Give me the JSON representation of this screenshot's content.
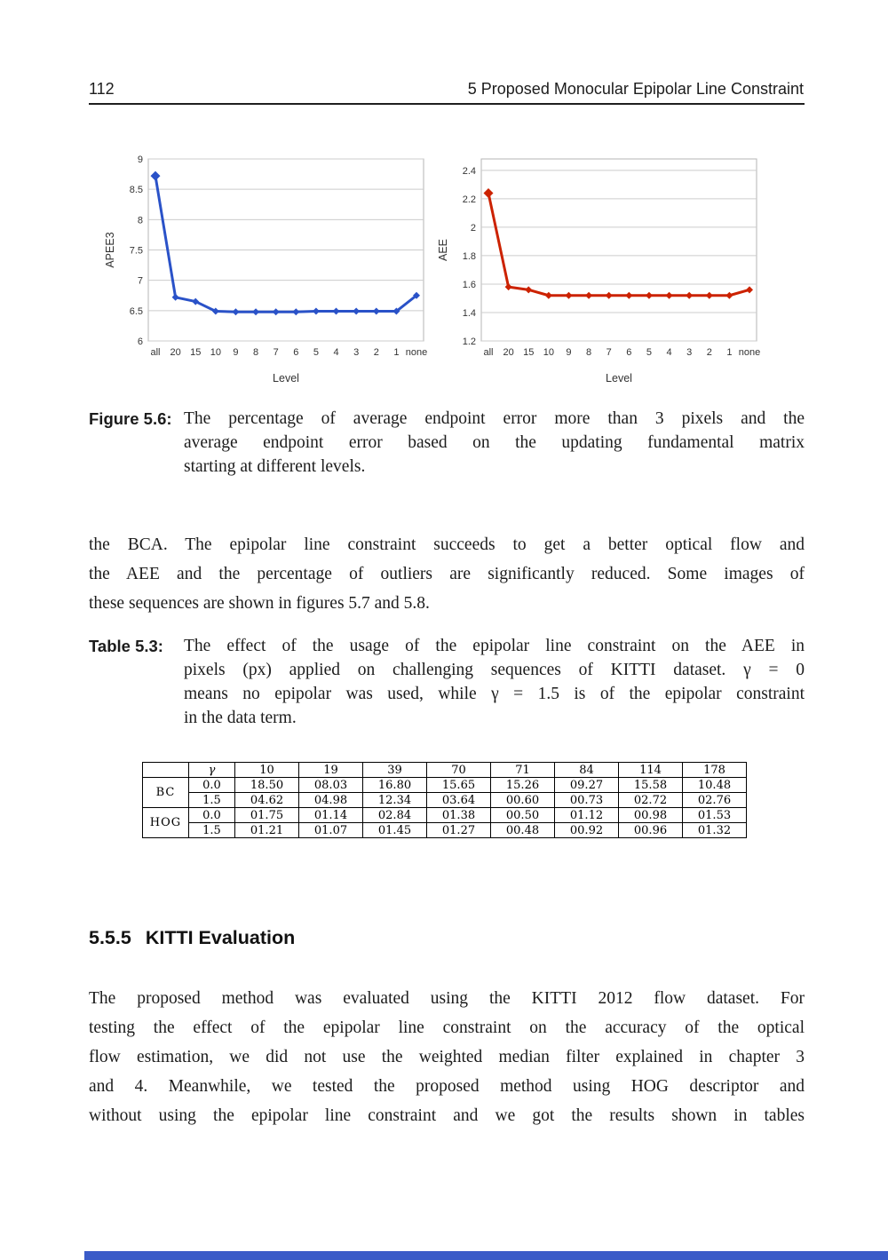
{
  "page": {
    "number": "112",
    "chapter_header": "5  Proposed Monocular Epipolar Line Constraint"
  },
  "figure_caption": {
    "label": "Figure 5.6:",
    "lines": [
      "The percentage of average endpoint error more than 3 pixels and the",
      "average endpoint error based on the updating fundamental matrix",
      "starting at different levels."
    ]
  },
  "paragraph1": {
    "lines": [
      "the BCA. The epipolar line constraint succeeds to get a better optical flow and",
      "the AEE and the percentage of outliers are significantly reduced. Some images of",
      "these sequences are shown in figures 5.7 and 5.8."
    ]
  },
  "table_caption": {
    "label": "Table 5.3:",
    "lines": [
      "The effect of the usage of the epipolar line constraint on the AEE in",
      "pixels (px) applied on challenging sequences of KITTI dataset. γ = 0",
      "means no epipolar was used, while γ = 1.5 is of the epipolar constraint",
      "in the data term."
    ]
  },
  "table": {
    "headers": [
      "",
      "γ",
      "10",
      "19",
      "39",
      "70",
      "71",
      "84",
      "114",
      "178"
    ],
    "groups": [
      {
        "name": "BC",
        "rows": [
          {
            "gamma": "0.0",
            "values": [
              "18.50",
              "08.03",
              "16.80",
              "15.65",
              "15.26",
              "09.27",
              "15.58",
              "10.48"
            ]
          },
          {
            "gamma": "1.5",
            "values": [
              "04.62",
              "04.98",
              "12.34",
              "03.64",
              "00.60",
              "00.73",
              "02.72",
              "02.76"
            ]
          }
        ]
      },
      {
        "name": "HOG",
        "rows": [
          {
            "gamma": "0.0",
            "values": [
              "01.75",
              "01.14",
              "02.84",
              "01.38",
              "00.50",
              "01.12",
              "00.98",
              "01.53"
            ]
          },
          {
            "gamma": "1.5",
            "values": [
              "01.21",
              "01.07",
              "01.45",
              "01.27",
              "00.48",
              "00.92",
              "00.96",
              "01.32"
            ]
          }
        ]
      }
    ]
  },
  "section": {
    "number": "5.5.5",
    "title": "KITTI Evaluation"
  },
  "paragraph2": {
    "lines": [
      "The proposed method was evaluated using the KITTI 2012 flow dataset.  For",
      "testing the effect of the epipolar line constraint on the accuracy of the optical",
      "flow estimation, we did not use the weighted median filter explained in chapter 3",
      "and 4.  Meanwhile, we tested the proposed method using HOG descriptor and",
      "without using the epipolar line constraint and we got the results shown in tables"
    ]
  },
  "chart_data": [
    {
      "type": "line",
      "title": "",
      "ylabel": "APEE3",
      "xlabel": "Level",
      "categories": [
        "all",
        "20",
        "15",
        "10",
        "9",
        "8",
        "7",
        "6",
        "5",
        "4",
        "3",
        "2",
        "1",
        "none"
      ],
      "values": [
        8.72,
        6.72,
        6.65,
        6.49,
        6.48,
        6.48,
        6.48,
        6.48,
        6.49,
        6.49,
        6.49,
        6.49,
        6.49,
        6.75
      ],
      "ylim": [
        6,
        9
      ],
      "yticks": [
        6,
        6.5,
        7,
        7.5,
        8,
        8.5,
        9
      ],
      "grid": true,
      "legend": "none",
      "color": "#2a52c8"
    },
    {
      "type": "line",
      "title": "",
      "ylabel": "AEE",
      "xlabel": "Level",
      "categories": [
        "all",
        "20",
        "15",
        "10",
        "9",
        "8",
        "7",
        "6",
        "5",
        "4",
        "3",
        "2",
        "1",
        "none"
      ],
      "values": [
        2.24,
        1.58,
        1.56,
        1.52,
        1.52,
        1.52,
        1.52,
        1.52,
        1.52,
        1.52,
        1.52,
        1.52,
        1.52,
        1.56
      ],
      "ylim": [
        1.2,
        2.48
      ],
      "yticks": [
        1.2,
        1.4,
        1.6,
        1.8,
        2,
        2.2,
        2.4
      ],
      "grid": true,
      "legend": "none",
      "color": "#cc2200"
    }
  ],
  "colors": {
    "grid_line": "#cccccc",
    "plot_border": "#b5b5b5",
    "axis_text": "#333333",
    "bottom_bar": "#3a5bc8"
  }
}
